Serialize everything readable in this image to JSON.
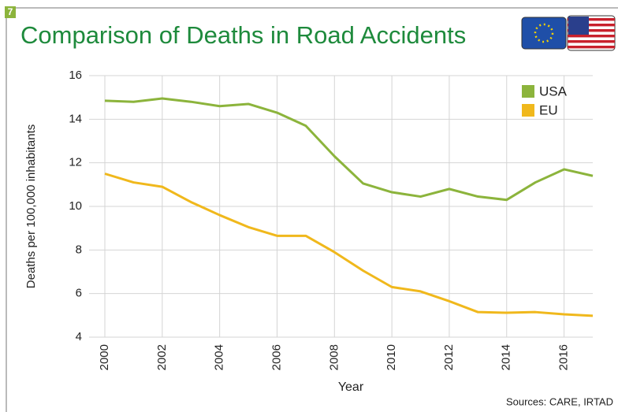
{
  "chart_data": {
    "type": "line",
    "figure_number": "7",
    "title": "Comparison of Deaths in Road Accidents",
    "x_label": "Year",
    "y_label": "Deaths per 100,000 inhabitants",
    "source": "Sources: CARE, IRTAD",
    "x": [
      2000,
      2001,
      2002,
      2003,
      2004,
      2005,
      2006,
      2007,
      2008,
      2009,
      2010,
      2011,
      2012,
      2013,
      2014,
      2015,
      2016,
      2017
    ],
    "series": [
      {
        "name": "USA",
        "color": "#8cb43c",
        "values": [
          14.85,
          14.8,
          14.95,
          14.8,
          14.6,
          14.7,
          14.3,
          13.7,
          12.3,
          11.05,
          10.65,
          10.45,
          10.8,
          10.45,
          10.3,
          11.1,
          11.7,
          11.4
        ]
      },
      {
        "name": "EU",
        "color": "#f0b81c",
        "values": [
          11.5,
          11.1,
          10.9,
          10.2,
          9.6,
          9.05,
          8.65,
          8.65,
          7.9,
          7.05,
          6.3,
          6.1,
          5.65,
          5.15,
          5.12,
          5.15,
          5.05,
          4.98
        ]
      }
    ],
    "xlim": [
      2000,
      2017
    ],
    "xticks": [
      2000,
      2002,
      2004,
      2006,
      2008,
      2010,
      2012,
      2014,
      2016
    ],
    "ylim": [
      4,
      16
    ],
    "yticks": [
      4,
      6,
      8,
      10,
      12,
      14,
      16
    ],
    "grid": true,
    "legend": "upper right"
  }
}
